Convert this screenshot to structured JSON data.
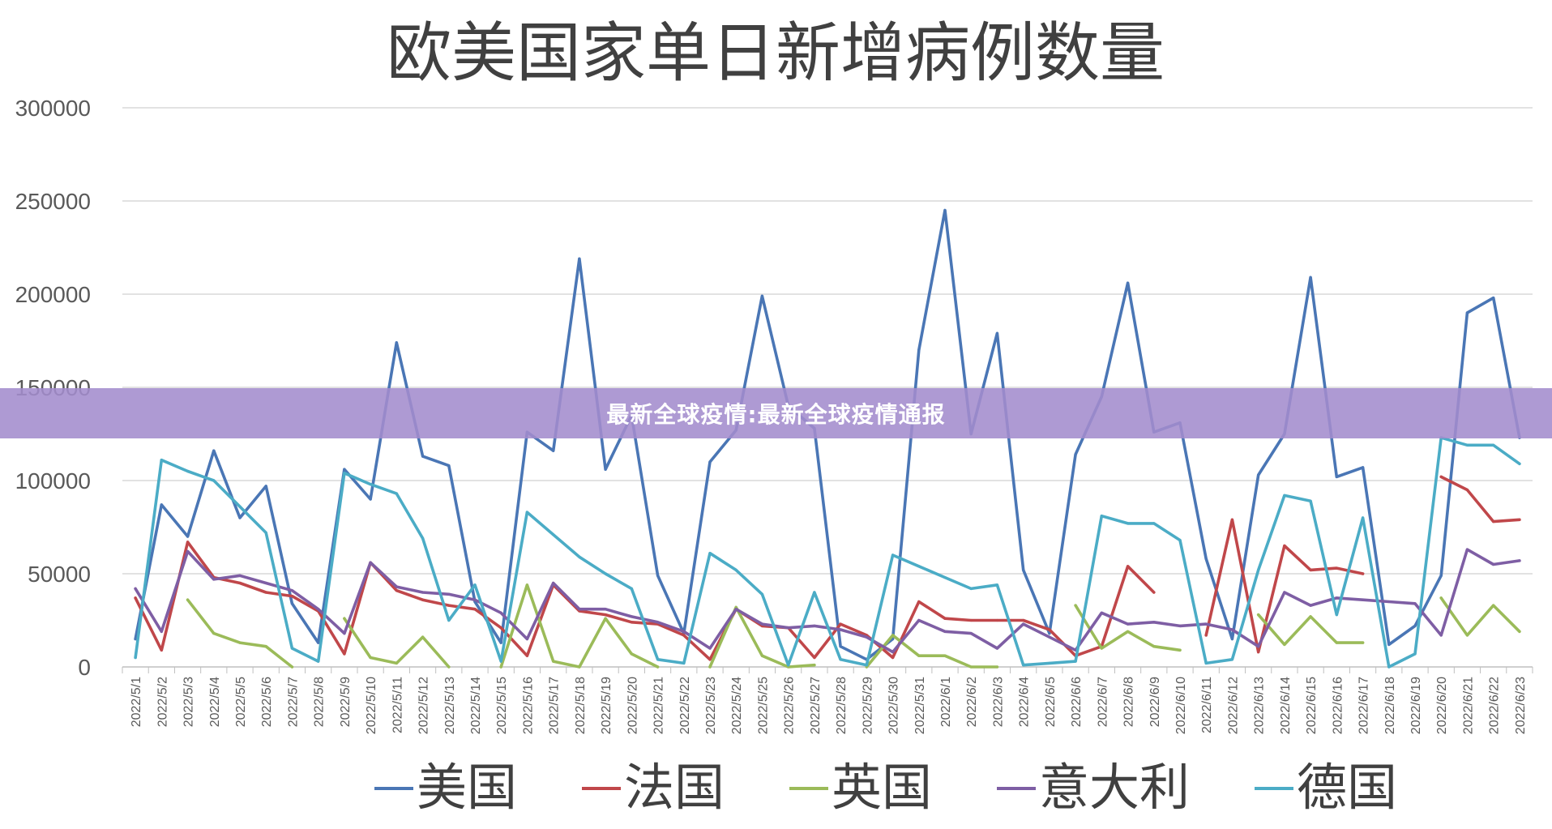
{
  "chart_data": {
    "type": "line",
    "title": "欧美国家单日新增病例数量",
    "ylim": [
      0,
      300000
    ],
    "yticks": [
      "0",
      "50000",
      "100000",
      "150000",
      "200000",
      "250000",
      "300000"
    ],
    "grid": true,
    "legend_position": "bottom",
    "categories": [
      "2022/5/1",
      "2022/5/2",
      "2022/5/3",
      "2022/5/4",
      "2022/5/5",
      "2022/5/6",
      "2022/5/7",
      "2022/5/8",
      "2022/5/9",
      "2022/5/10",
      "2022/5/11",
      "2022/5/12",
      "2022/5/13",
      "2022/5/14",
      "2022/5/15",
      "2022/5/16",
      "2022/5/17",
      "2022/5/18",
      "2022/5/19",
      "2022/5/20",
      "2022/5/21",
      "2022/5/22",
      "2022/5/23",
      "2022/5/24",
      "2022/5/25",
      "2022/5/26",
      "2022/5/27",
      "2022/5/28",
      "2022/5/29",
      "2022/5/30",
      "2022/5/31",
      "2022/6/1",
      "2022/6/2",
      "2022/6/3",
      "2022/6/4",
      "2022/6/5",
      "2022/6/6",
      "2022/6/7",
      "2022/6/8",
      "2022/6/9",
      "2022/6/10",
      "2022/6/11",
      "2022/6/12",
      "2022/6/13",
      "2022/6/14",
      "2022/6/15",
      "2022/6/16",
      "2022/6/17",
      "2022/6/18",
      "2022/6/19",
      "2022/6/20",
      "2022/6/21",
      "2022/6/22",
      "2022/6/23"
    ],
    "series": [
      {
        "name": "美国",
        "color": "#4a76b5",
        "values": [
          15000,
          87000,
          70000,
          116000,
          80000,
          97000,
          34000,
          13000,
          106000,
          90000,
          174000,
          113000,
          108000,
          35000,
          13000,
          126000,
          116000,
          219000,
          106000,
          135000,
          49000,
          18000,
          110000,
          127000,
          199000,
          140000,
          128000,
          11000,
          4000,
          15000,
          170000,
          245000,
          125000,
          179000,
          52000,
          18000,
          114000,
          145000,
          206000,
          126000,
          131000,
          58000,
          15000,
          103000,
          125000,
          209000,
          102000,
          107000,
          12000,
          22000,
          49000,
          190000,
          198000,
          123000
        ]
      },
      {
        "name": "法国",
        "color": "#c0474a",
        "values": [
          37000,
          9000,
          67000,
          48000,
          45000,
          40000,
          38000,
          30000,
          7000,
          56000,
          41000,
          36000,
          33000,
          31000,
          21000,
          6000,
          44000,
          30000,
          28000,
          24000,
          23000,
          17000,
          4000,
          31000,
          22000,
          21000,
          5000,
          23000,
          17000,
          5000,
          35000,
          26000,
          25000,
          25000,
          25000,
          20000,
          6000,
          11000,
          54000,
          40000,
          null,
          17000,
          79000,
          8000,
          65000,
          52000,
          53000,
          50000,
          null,
          null,
          102000,
          95000,
          78000,
          79000
        ]
      },
      {
        "name": "英国",
        "color": "#9bbb59",
        "values": [
          null,
          null,
          36000,
          18000,
          13000,
          11000,
          0,
          null,
          26000,
          5000,
          2000,
          16000,
          0,
          null,
          0,
          44000,
          3000,
          0,
          26000,
          7000,
          0,
          null,
          0,
          32000,
          6000,
          0,
          1000,
          null,
          0,
          17000,
          6000,
          6000,
          0,
          0,
          null,
          null,
          33000,
          10000,
          19000,
          11000,
          9000,
          null,
          null,
          28000,
          12000,
          27000,
          13000,
          13000,
          null,
          null,
          37000,
          17000,
          33000,
          19000
        ]
      },
      {
        "name": "意大利",
        "color": "#7e5ea4",
        "values": [
          42000,
          19000,
          62000,
          47000,
          49000,
          45000,
          41000,
          31000,
          18000,
          56000,
          43000,
          40000,
          39000,
          36000,
          29000,
          15000,
          45000,
          31000,
          31000,
          27000,
          24000,
          19000,
          10000,
          31000,
          23000,
          21000,
          22000,
          20000,
          16000,
          8000,
          25000,
          19000,
          18000,
          10000,
          23000,
          16000,
          9000,
          29000,
          23000,
          24000,
          22000,
          23000,
          20000,
          11000,
          40000,
          33000,
          37000,
          36000,
          35000,
          34000,
          17000,
          63000,
          55000,
          57000
        ]
      },
      {
        "name": "德国",
        "color": "#4bacc6",
        "values": [
          5000,
          111000,
          105000,
          100000,
          86000,
          72000,
          10000,
          3000,
          104000,
          98000,
          93000,
          69000,
          25000,
          44000,
          3000,
          83000,
          71000,
          59000,
          50000,
          42000,
          4000,
          2000,
          61000,
          52000,
          39000,
          1000,
          40000,
          4000,
          1000,
          60000,
          54000,
          48000,
          42000,
          44000,
          1000,
          2000,
          3000,
          81000,
          77000,
          77000,
          68000,
          2000,
          4000,
          52000,
          92000,
          89000,
          28000,
          80000,
          0,
          7000,
          123000,
          119000,
          119000,
          109000
        ]
      }
    ]
  },
  "banner": {
    "text": "最新全球疫情:最新全球疫情通报"
  }
}
